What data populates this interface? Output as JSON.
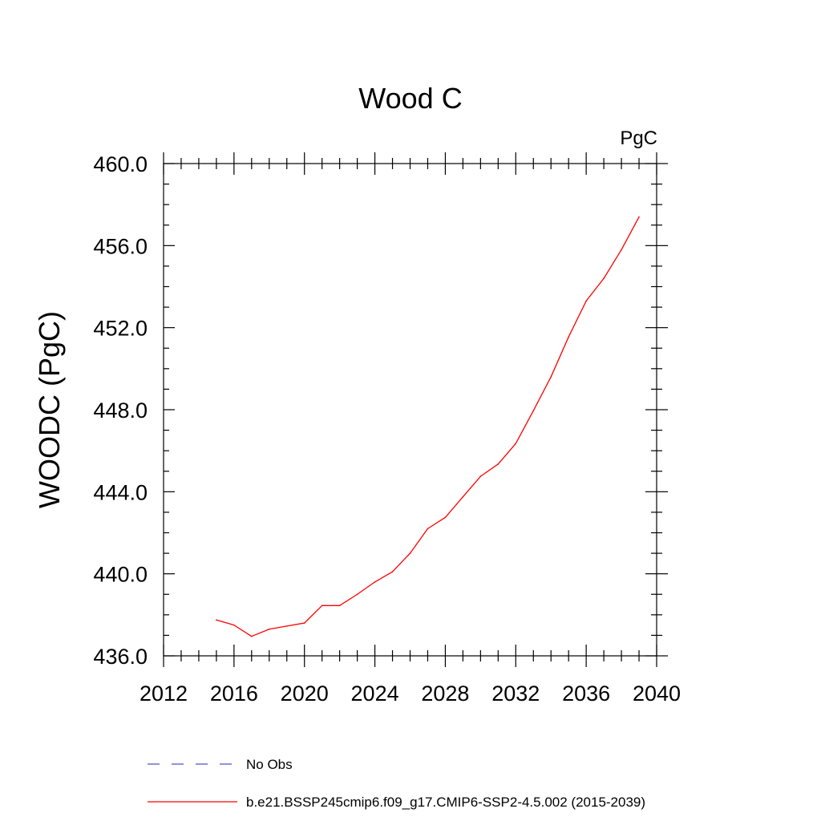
{
  "chart_data": {
    "type": "line",
    "title": "Wood C",
    "units": "PgC",
    "ylabel": "WOODC  (PgC)",
    "xlabel": "",
    "xlim": [
      2012,
      2040
    ],
    "ylim": [
      436.0,
      460.0
    ],
    "x_ticks": [
      "2012",
      "2016",
      "2020",
      "2024",
      "2028",
      "2032",
      "2036",
      "2040"
    ],
    "y_ticks": [
      "436.0",
      "440.0",
      "444.0",
      "448.0",
      "452.0",
      "456.0",
      "460.0"
    ],
    "grid": false,
    "legend_position": "bottom",
    "series": [
      {
        "name": "b.e21.BSSP245cmip6.f09_g17.CMIP6-SSP2-4.5.002 (2015-2039)",
        "color": "#ff0000",
        "style": "solid",
        "x": [
          2015,
          2016,
          2017,
          2018,
          2019,
          2020,
          2021,
          2022,
          2023,
          2024,
          2025,
          2026,
          2027,
          2028,
          2029,
          2030,
          2031,
          2032,
          2033,
          2034,
          2035,
          2036,
          2037,
          2038,
          2039
        ],
        "y": [
          437.75,
          437.5,
          436.95,
          437.3,
          437.45,
          437.6,
          438.45,
          438.45,
          439.0,
          439.6,
          440.1,
          441.0,
          442.2,
          442.75,
          443.75,
          444.75,
          445.35,
          446.35,
          447.95,
          449.6,
          451.55,
          453.3,
          454.4,
          455.8,
          457.4
        ]
      }
    ],
    "legend": [
      {
        "label": "No Obs",
        "color": "#5050c8",
        "style": "dashed"
      },
      {
        "label": "b.e21.BSSP245cmip6.f09_g17.CMIP6-SSP2-4.5.002 (2015-2039)",
        "color": "#ff0000",
        "style": "solid"
      }
    ]
  }
}
